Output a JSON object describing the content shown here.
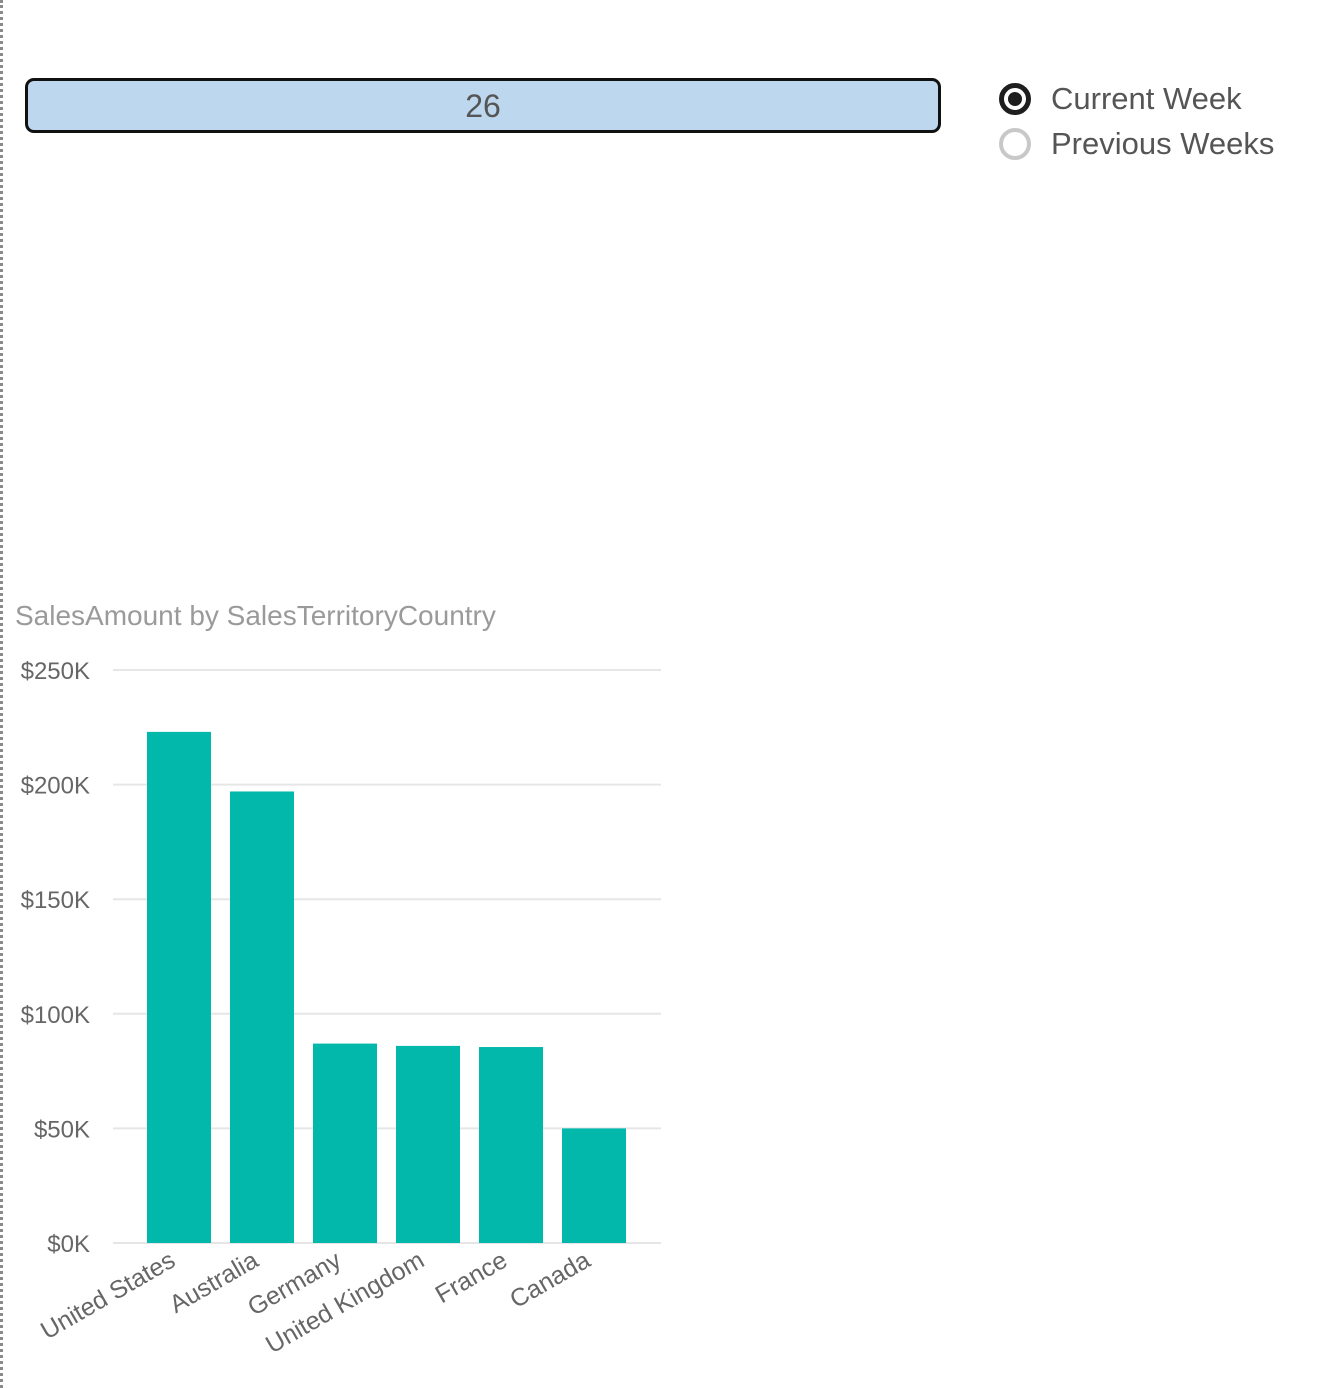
{
  "week_card": {
    "value": "26"
  },
  "week_slicer": {
    "options": [
      {
        "label": "Current Week",
        "selected": true
      },
      {
        "label": "Previous Weeks",
        "selected": false
      }
    ]
  },
  "colors": {
    "card_fill": "#bdd7ee",
    "bar_fill": "#01b8aa",
    "axis_text": "#666666",
    "title_text": "#9a9a9a",
    "gridline": "#e6e6e6"
  },
  "chart_data": {
    "type": "bar",
    "title": "SalesAmount by SalesTerritoryCountry",
    "xlabel": "",
    "ylabel": "",
    "categories": [
      "United States",
      "Australia",
      "Germany",
      "United Kingdom",
      "France",
      "Canada"
    ],
    "values": [
      223000,
      197000,
      87000,
      86000,
      85500,
      50000
    ],
    "ylim": [
      0,
      250000
    ],
    "yticks": [
      0,
      50000,
      100000,
      150000,
      200000,
      250000
    ],
    "ytick_labels": [
      "$0K",
      "$50K",
      "$100K",
      "$150K",
      "$200K",
      "$250K"
    ],
    "grid": true,
    "legend": "none"
  }
}
